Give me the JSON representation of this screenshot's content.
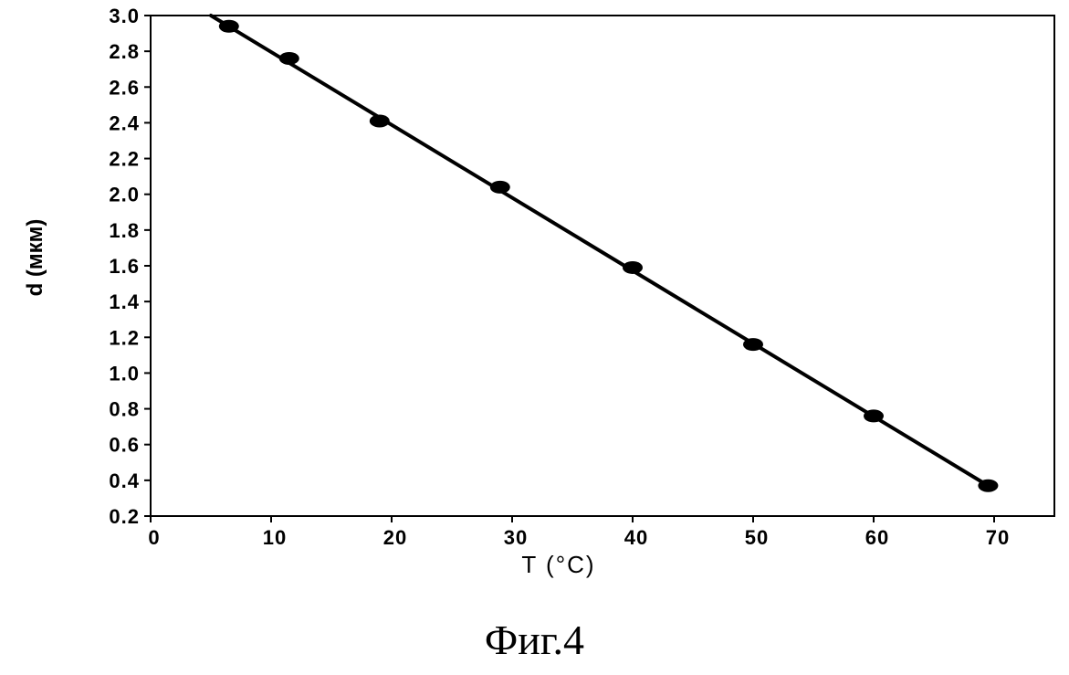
{
  "chart_data": {
    "type": "scatter",
    "xlabel": "T (°C)",
    "ylabel": "d (мкм)",
    "xlim": [
      0,
      75
    ],
    "ylim": [
      0.2,
      3.0
    ],
    "xticks": [
      0,
      10,
      20,
      30,
      40,
      50,
      60,
      70
    ],
    "yticks": [
      0.2,
      0.4,
      0.6,
      0.8,
      1.0,
      1.2,
      1.4,
      1.6,
      1.8,
      2.0,
      2.2,
      2.4,
      2.6,
      2.8,
      3.0
    ],
    "grid": false,
    "series": [
      {
        "x": [
          6.5,
          11.5,
          19,
          29,
          40,
          50,
          60,
          69.5
        ],
        "y": [
          2.94,
          2.76,
          2.41,
          2.04,
          1.59,
          1.16,
          0.76,
          0.37
        ]
      }
    ],
    "fit_line": {
      "x": [
        5,
        69.5
      ],
      "y": [
        3.0,
        0.37
      ]
    },
    "colors": {
      "ink": "#000000",
      "background": "#ffffff"
    }
  },
  "caption": "Фиг.4"
}
